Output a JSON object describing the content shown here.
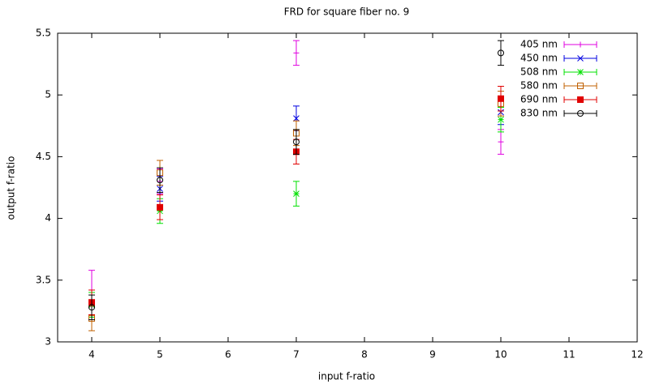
{
  "chart_data": {
    "type": "errorbar",
    "title": "FRD for square fiber no. 9",
    "x_label": "input f-ratio",
    "y_label": "output f-ratio",
    "x": [
      4,
      5,
      7,
      10
    ],
    "xlim": [
      3.5,
      12
    ],
    "xticks": [
      4,
      5,
      6,
      7,
      8,
      9,
      10,
      11,
      12
    ],
    "ylim": [
      3,
      5.5
    ],
    "yticks": [
      3,
      3.5,
      4,
      4.5,
      5,
      5.5
    ],
    "legend": "top-right",
    "series": [
      {
        "name": "405 nm",
        "color": "#e000e0",
        "marker": "plus",
        "values": [
          3.4,
          4.3,
          5.34,
          4.62
        ],
        "errors": [
          0.18,
          0.1,
          0.1,
          0.1
        ]
      },
      {
        "name": "450 nm",
        "color": "#0000e0",
        "marker": "cross",
        "values": [
          3.3,
          4.24,
          4.81,
          4.86
        ],
        "errors": [
          0.1,
          0.1,
          0.1,
          0.1
        ]
      },
      {
        "name": "508 nm",
        "color": "#00e000",
        "marker": "star",
        "values": [
          3.3,
          4.06,
          4.2,
          4.8
        ],
        "errors": [
          0.1,
          0.1,
          0.1,
          0.1
        ]
      },
      {
        "name": "580 nm",
        "color": "#c06000",
        "marker": "square",
        "values": [
          3.19,
          4.37,
          4.69,
          4.93
        ],
        "errors": [
          0.1,
          0.1,
          0.1,
          0.1
        ]
      },
      {
        "name": "690 nm",
        "color": "#e00000",
        "marker": "filled-square",
        "values": [
          3.32,
          4.09,
          4.54,
          4.97
        ],
        "errors": [
          0.1,
          0.1,
          0.1,
          0.1
        ]
      },
      {
        "name": "830 nm",
        "color": "#000000",
        "marker": "circle",
        "values": [
          3.28,
          4.31,
          4.62,
          5.34
        ],
        "errors": [
          0.1,
          0.1,
          0.1,
          0.1
        ]
      }
    ]
  }
}
